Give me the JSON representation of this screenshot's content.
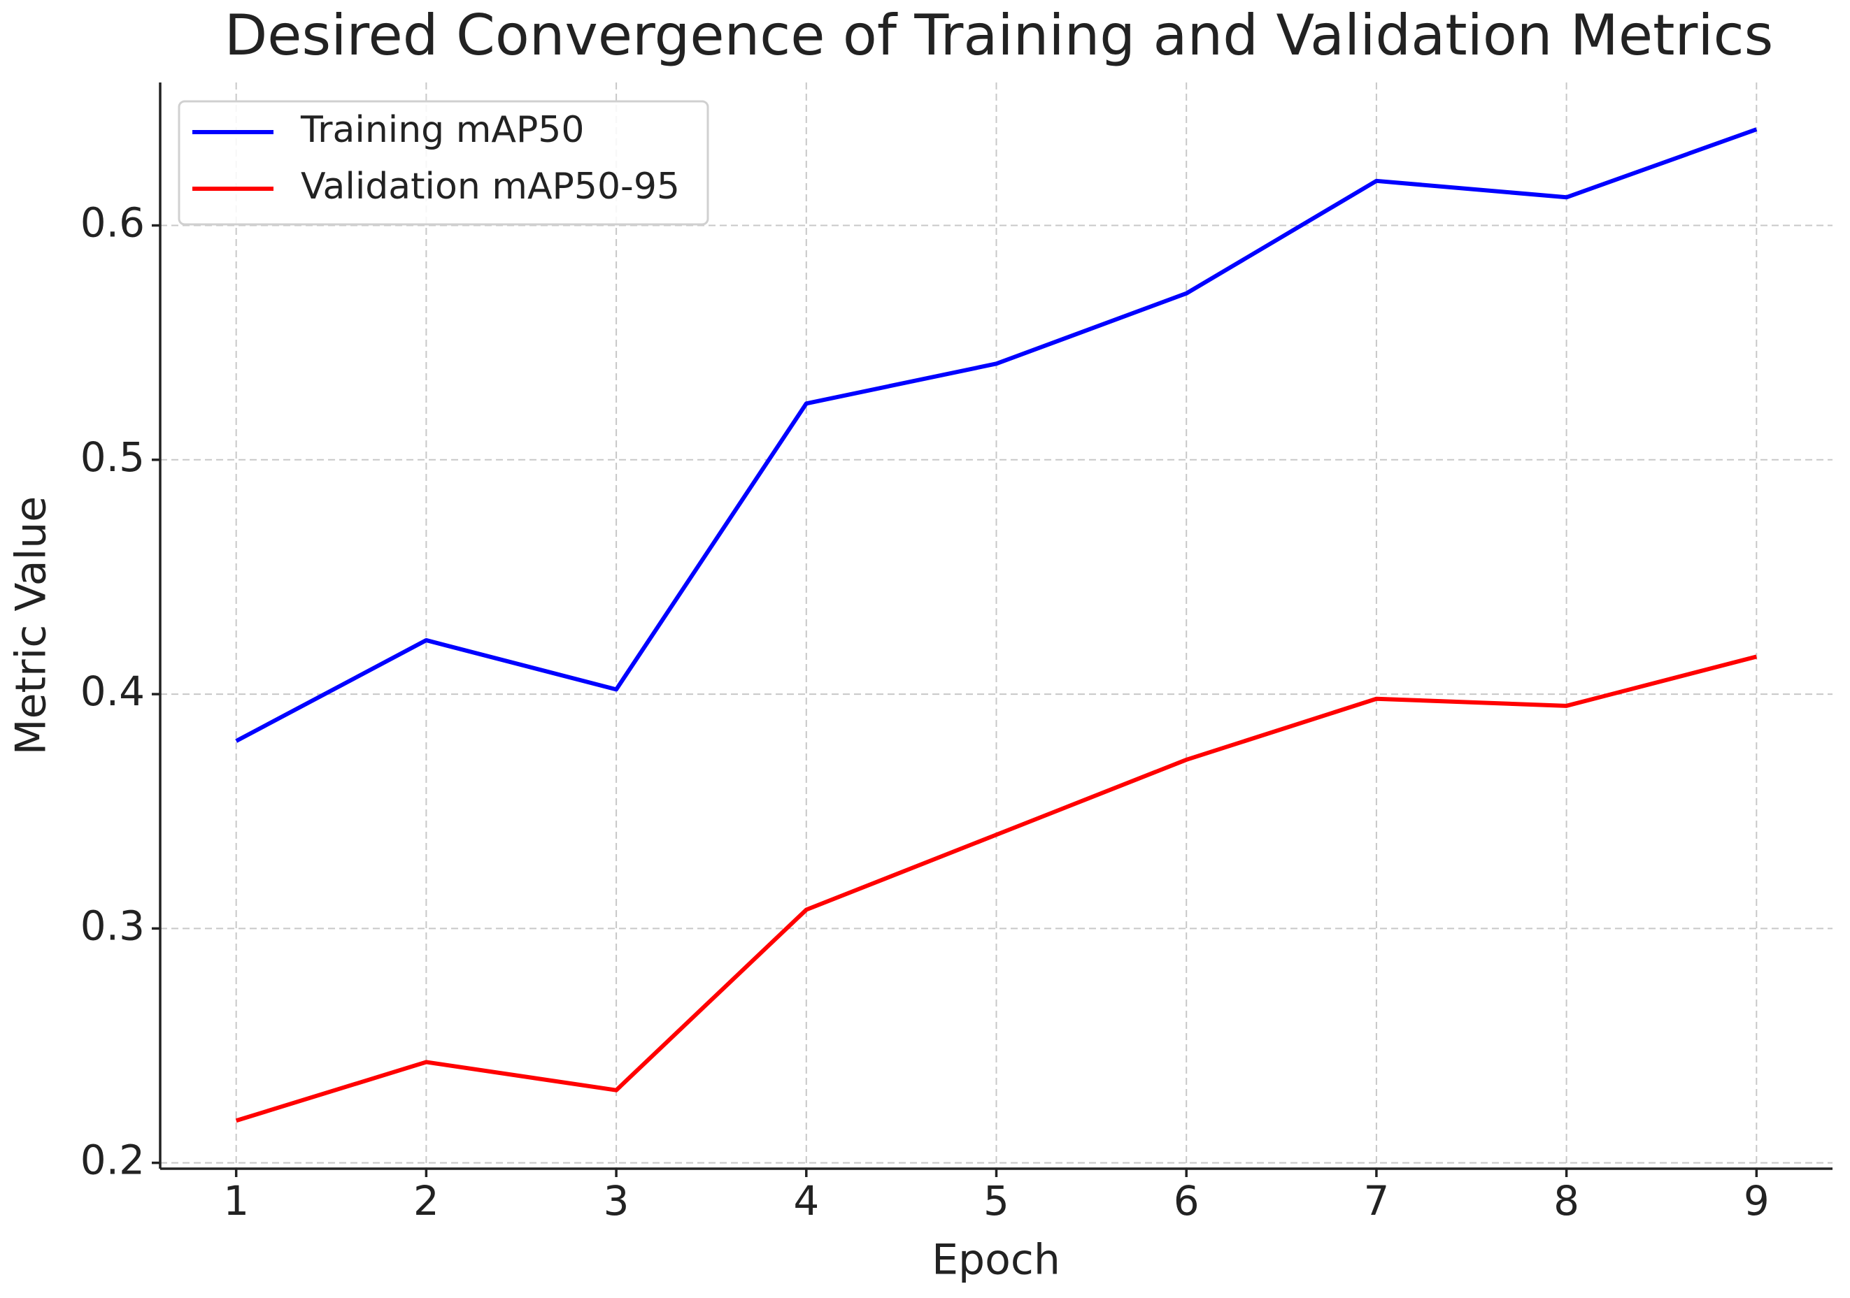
{
  "chart_data": {
    "type": "line",
    "title": "Desired Convergence of Training and Validation Metrics",
    "x_label": "Epoch",
    "y_label": "Metric Value",
    "x": [
      1,
      2,
      3,
      4,
      5,
      6,
      7,
      8,
      9
    ],
    "series": [
      {
        "name": "Training mAP50",
        "color": "#0000ff",
        "values": [
          0.38,
          0.423,
          0.402,
          0.524,
          0.541,
          0.571,
          0.619,
          0.612,
          0.641
        ]
      },
      {
        "name": "Validation mAP50-95",
        "color": "#ff0000",
        "values": [
          0.218,
          0.243,
          0.231,
          0.308,
          0.34,
          0.372,
          0.398,
          0.395,
          0.416
        ]
      }
    ],
    "xlim": [
      0.6,
      9.4
    ],
    "ylim": [
      0.1975,
      0.661
    ],
    "xticks": [
      1,
      2,
      3,
      4,
      5,
      6,
      7,
      8,
      9
    ],
    "yticks": [
      0.2,
      0.3,
      0.4,
      0.5,
      0.6
    ],
    "grid": true,
    "legend": "upper left"
  }
}
